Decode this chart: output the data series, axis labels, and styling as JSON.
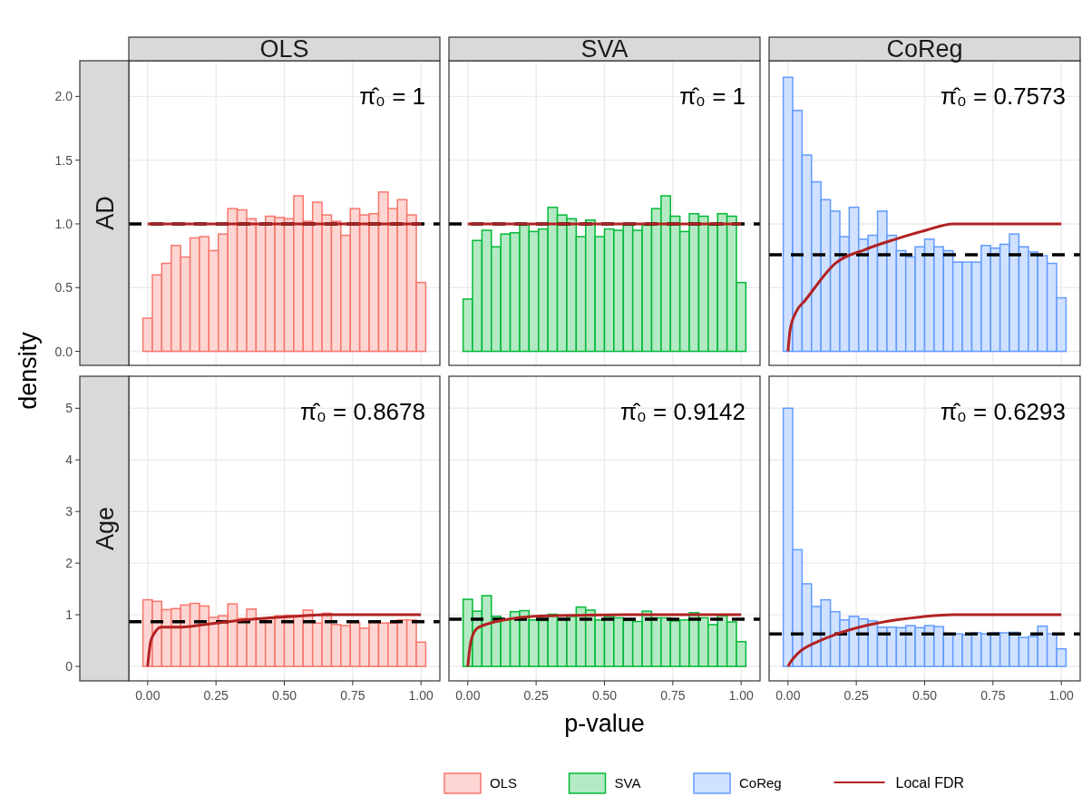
{
  "chart_data": [
    {
      "type": "histogram",
      "subtitle": "AD",
      "ylabel": "density",
      "bins": [
        -0.0172,
        0.0172,
        0.0517,
        0.0862,
        0.1207,
        0.1552,
        0.1897,
        0.2241,
        0.2586,
        0.2931,
        0.3276,
        0.3621,
        0.3966,
        0.431,
        0.4655,
        0.5,
        0.5345,
        0.569,
        0.6034,
        0.6379,
        0.6724,
        0.7069,
        0.7414,
        0.7759,
        0.8103,
        0.8448,
        0.8793,
        0.9138,
        0.9483,
        0.9828,
        1.0172
      ],
      "series": [
        {
          "name": "OLS",
          "type": "histogram",
          "color": "#fdd6d3",
          "values": [
            0.26,
            0.6,
            0.69,
            0.83,
            0.74,
            0.89,
            0.9,
            0.79,
            0.92,
            1.12,
            1.11,
            1.04,
            1.0,
            1.06,
            1.05,
            1.04,
            1.22,
            1.02,
            1.17,
            1.07,
            1.02,
            0.91,
            1.12,
            1.07,
            1.08,
            1.25,
            1.12,
            1.19,
            1.07,
            0.54
          ]
        },
        {
          "name": "Local FDR",
          "type": "line",
          "color": "#b22222",
          "x": [
            0,
            1
          ],
          "values": [
            1,
            1
          ]
        }
      ],
      "ref_lines": [
        {
          "axis": "y",
          "value": 1,
          "color": "#000000",
          "line_style": "dashed"
        }
      ],
      "annotations": [
        "π̂₀ = 1"
      ],
      "xlim": [
        -0.069,
        1.069
      ],
      "ylim": [
        -0.11,
        2.28
      ],
      "xticks": [
        0,
        0.25,
        0.5,
        0.75,
        1
      ],
      "yticks": [
        {
          "value": 0,
          "label": "0.0"
        },
        {
          "value": 0.5,
          "label": "0.5"
        },
        {
          "value": 1,
          "label": "1.0"
        },
        {
          "value": 1.5,
          "label": "1.5"
        },
        {
          "value": 2,
          "label": "2.0"
        }
      ],
      "grid": true,
      "legend": "bottom",
      "tick_labels": "y"
    },
    {
      "type": "histogram",
      "bins": [
        -0.0172,
        0.0172,
        0.0517,
        0.0862,
        0.1207,
        0.1552,
        0.1897,
        0.2241,
        0.2586,
        0.2931,
        0.3276,
        0.3621,
        0.3966,
        0.431,
        0.4655,
        0.5,
        0.5345,
        0.569,
        0.6034,
        0.6379,
        0.6724,
        0.7069,
        0.7414,
        0.7759,
        0.8103,
        0.8448,
        0.8793,
        0.9138,
        0.9483,
        0.9828,
        1.0172
      ],
      "series": [
        {
          "name": "SVA",
          "type": "histogram",
          "color": "#b3eac3",
          "values": [
            0.41,
            0.87,
            0.95,
            0.82,
            0.92,
            0.93,
            0.99,
            0.94,
            0.96,
            1.13,
            1.07,
            1.04,
            0.9,
            1.03,
            0.9,
            0.96,
            0.95,
            0.99,
            0.95,
            0.99,
            1.12,
            1.22,
            1.06,
            0.94,
            1.08,
            1.06,
            0.99,
            1.08,
            1.06,
            0.54
          ]
        },
        {
          "name": "Local FDR",
          "type": "line",
          "color": "#b22222",
          "x": [
            0,
            1
          ],
          "values": [
            1,
            1
          ]
        }
      ],
      "ref_lines": [
        {
          "axis": "y",
          "value": 1,
          "color": "#000000",
          "line_style": "dashed"
        }
      ],
      "annotations": [
        "π̂₀ = 1"
      ],
      "xlim": [
        -0.069,
        1.069
      ],
      "ylim": [
        -0.11,
        2.28
      ],
      "xticks": [
        0,
        0.25,
        0.5,
        0.75,
        1
      ],
      "yticks": [
        0,
        0.5,
        1,
        1.5,
        2
      ],
      "grid": true,
      "legend": "bottom",
      "tick_labels": false
    },
    {
      "type": "histogram",
      "bins": [
        -0.0172,
        0.0172,
        0.0517,
        0.0862,
        0.1207,
        0.1552,
        0.1897,
        0.2241,
        0.2586,
        0.2931,
        0.3276,
        0.3621,
        0.3966,
        0.431,
        0.4655,
        0.5,
        0.5345,
        0.569,
        0.6034,
        0.6379,
        0.6724,
        0.7069,
        0.7414,
        0.7759,
        0.8103,
        0.8448,
        0.8793,
        0.9138,
        0.9483,
        0.9828,
        1.0172
      ],
      "series": [
        {
          "name": "CoReg",
          "type": "histogram",
          "color": "#d0e1ff",
          "values": [
            2.15,
            1.89,
            1.54,
            1.33,
            1.19,
            1.1,
            0.9,
            1.13,
            0.88,
            0.91,
            1.1,
            0.91,
            0.79,
            0.74,
            0.82,
            0.88,
            0.82,
            0.79,
            0.7,
            0.7,
            0.7,
            0.83,
            0.81,
            0.84,
            0.92,
            0.82,
            0.78,
            0.75,
            0.69,
            0.42
          ]
        },
        {
          "name": "Local FDR",
          "type": "line",
          "color": "#b22222",
          "x": [
            0,
            0.008,
            0.03,
            0.063,
            0.173,
            0.284,
            0.394,
            0.505,
            0.604,
            1
          ],
          "values": [
            0,
            0.17,
            0.31,
            0.4,
            0.69,
            0.8,
            0.88,
            0.95,
            1,
            1
          ]
        }
      ],
      "ref_lines": [
        {
          "axis": "y",
          "value": 0.7573,
          "color": "#000000",
          "line_style": "dashed"
        }
      ],
      "annotations": [
        "π̂₀ = 0.7573"
      ],
      "xlim": [
        -0.069,
        1.069
      ],
      "ylim": [
        -0.11,
        2.28
      ],
      "xticks": [
        0,
        0.25,
        0.5,
        0.75,
        1
      ],
      "yticks": [
        0,
        0.5,
        1,
        1.5,
        2
      ],
      "grid": true,
      "legend": "bottom",
      "tick_labels": false
    },
    {
      "type": "histogram",
      "subtitle": "Age",
      "bins": [
        -0.0172,
        0.0172,
        0.0517,
        0.0862,
        0.1207,
        0.1552,
        0.1897,
        0.2241,
        0.2586,
        0.2931,
        0.3276,
        0.3621,
        0.3966,
        0.431,
        0.4655,
        0.5,
        0.5345,
        0.569,
        0.6034,
        0.6379,
        0.6724,
        0.7069,
        0.7414,
        0.7759,
        0.8103,
        0.8448,
        0.8793,
        0.9138,
        0.9483,
        0.9828,
        1.0172
      ],
      "series": [
        {
          "type": "histogram",
          "color": "#fdd6d3",
          "values": [
            1.29,
            1.26,
            1.1,
            1.12,
            1.19,
            1.22,
            1.17,
            0.95,
            0.98,
            1.21,
            0.93,
            1.11,
            0.93,
            0.93,
            0.98,
            0.99,
            0.98,
            1.09,
            0.84,
            1.03,
            0.81,
            0.79,
            0.85,
            0.74,
            0.85,
            0.84,
            0.84,
            0.9,
            0.9,
            0.47
          ]
        },
        {
          "name": "Local FDR",
          "type": "line",
          "color": "#b22222",
          "x": [
            0,
            0.011,
            0.028,
            0.05,
            0.127,
            0.205,
            0.316,
            0.426,
            0.537,
            0.681,
            1
          ],
          "values": [
            0,
            0.48,
            0.67,
            0.76,
            0.76,
            0.81,
            0.88,
            0.93,
            0.97,
            1,
            1
          ]
        }
      ],
      "ref_lines": [
        {
          "axis": "y",
          "value": 0.8678,
          "color": "#000000",
          "line_style": "dashed"
        }
      ],
      "annotations": [
        "π̂₀ = 0.8678"
      ],
      "xlim": [
        -0.069,
        1.069
      ],
      "ylim": [
        -0.28,
        5.62
      ],
      "xticks": [
        {
          "value": 0,
          "label": "0.00"
        },
        {
          "value": 0.25,
          "label": "0.25"
        },
        {
          "value": 0.5,
          "label": "0.50"
        },
        {
          "value": 0.75,
          "label": "0.75"
        },
        {
          "value": 1,
          "label": "1.00"
        }
      ],
      "yticks": [
        0,
        1,
        2,
        3,
        4,
        5
      ],
      "grid": true,
      "legend": "bottom"
    },
    {
      "type": "histogram",
      "xlabel": "p-value",
      "bins": [
        -0.0172,
        0.0172,
        0.0517,
        0.0862,
        0.1207,
        0.1552,
        0.1897,
        0.2241,
        0.2586,
        0.2931,
        0.3276,
        0.3621,
        0.3966,
        0.431,
        0.4655,
        0.5,
        0.5345,
        0.569,
        0.6034,
        0.6379,
        0.6724,
        0.7069,
        0.7414,
        0.7759,
        0.8103,
        0.8448,
        0.8793,
        0.9138,
        0.9483,
        0.9828,
        1.0172
      ],
      "series": [
        {
          "type": "histogram",
          "color": "#b3eac3",
          "values": [
            1.3,
            1.07,
            1.37,
            0.97,
            0.9,
            1.06,
            1.08,
            0.9,
            0.89,
            1.01,
            0.9,
            0.97,
            1.15,
            1.09,
            0.9,
            0.97,
            0.94,
            0.89,
            0.87,
            1.07,
            0.94,
            0.94,
            0.88,
            0.9,
            1.04,
            0.94,
            0.81,
            0.98,
            0.86,
            0.48
          ]
        },
        {
          "name": "Local FDR",
          "type": "line",
          "color": "#b22222",
          "x": [
            0,
            0.011,
            0.033,
            0.077,
            0.133,
            0.243,
            0.409,
            0.575,
            1
          ],
          "values": [
            0,
            0.48,
            0.73,
            0.83,
            0.9,
            0.97,
            0.99,
            1,
            1
          ]
        }
      ],
      "ref_lines": [
        {
          "axis": "y",
          "value": 0.9142,
          "color": "#000000",
          "line_style": "dashed"
        }
      ],
      "annotations": [
        "π̂₀ = 0.9142"
      ],
      "xlim": [
        -0.069,
        1.069
      ],
      "ylim": [
        -0.28,
        5.62
      ],
      "xticks": [
        {
          "value": 0,
          "label": "0.00"
        },
        {
          "value": 0.25,
          "label": "0.25"
        },
        {
          "value": 0.5,
          "label": "0.50"
        },
        {
          "value": 0.75,
          "label": "0.75"
        },
        {
          "value": 1,
          "label": "1.00"
        }
      ],
      "yticks": [
        0,
        1,
        2,
        3,
        4,
        5
      ],
      "grid": true,
      "legend": "bottom",
      "tick_labels": "x"
    },
    {
      "type": "histogram",
      "bins": [
        -0.0172,
        0.0172,
        0.0517,
        0.0862,
        0.1207,
        0.1552,
        0.1897,
        0.2241,
        0.2586,
        0.2931,
        0.3276,
        0.3621,
        0.3966,
        0.431,
        0.4655,
        0.5,
        0.5345,
        0.569,
        0.6034,
        0.6379,
        0.6724,
        0.7069,
        0.7414,
        0.7759,
        0.8103,
        0.8448,
        0.8793,
        0.9138,
        0.9483,
        0.9828,
        1.0172
      ],
      "series": [
        {
          "type": "histogram",
          "color": "#d0e1ff",
          "values": [
            5.0,
            2.26,
            1.6,
            1.16,
            1.29,
            1.06,
            0.9,
            0.97,
            0.92,
            0.88,
            0.76,
            0.76,
            0.75,
            0.79,
            0.75,
            0.79,
            0.77,
            0.63,
            0.63,
            0.61,
            0.65,
            0.63,
            0.65,
            0.65,
            0.66,
            0.56,
            0.58,
            0.78,
            0.63,
            0.34
          ]
        },
        {
          "name": "Local FDR",
          "type": "line",
          "color": "#b22222",
          "x": [
            0,
            0.009,
            0.042,
            0.097,
            0.175,
            0.285,
            0.396,
            0.507,
            0.606,
            1
          ],
          "values": [
            0,
            0.08,
            0.28,
            0.45,
            0.62,
            0.79,
            0.9,
            0.97,
            1,
            1
          ]
        }
      ],
      "ref_lines": [
        {
          "axis": "y",
          "value": 0.6293,
          "color": "#000000",
          "line_style": "dashed"
        }
      ],
      "annotations": [
        "π̂₀ = 0.6293"
      ],
      "xlim": [
        -0.069,
        1.069
      ],
      "ylim": [
        -0.28,
        5.62
      ],
      "xticks": [
        {
          "value": 0,
          "label": "0.00"
        },
        {
          "value": 0.25,
          "label": "0.25"
        },
        {
          "value": 0.5,
          "label": "0.50"
        },
        {
          "value": 0.75,
          "label": "0.75"
        },
        {
          "value": 1,
          "label": "1.00"
        }
      ],
      "yticks": [
        0,
        1,
        2,
        3,
        4,
        5
      ],
      "grid": true,
      "legend": "bottom",
      "tick_labels": "x"
    }
  ]
}
